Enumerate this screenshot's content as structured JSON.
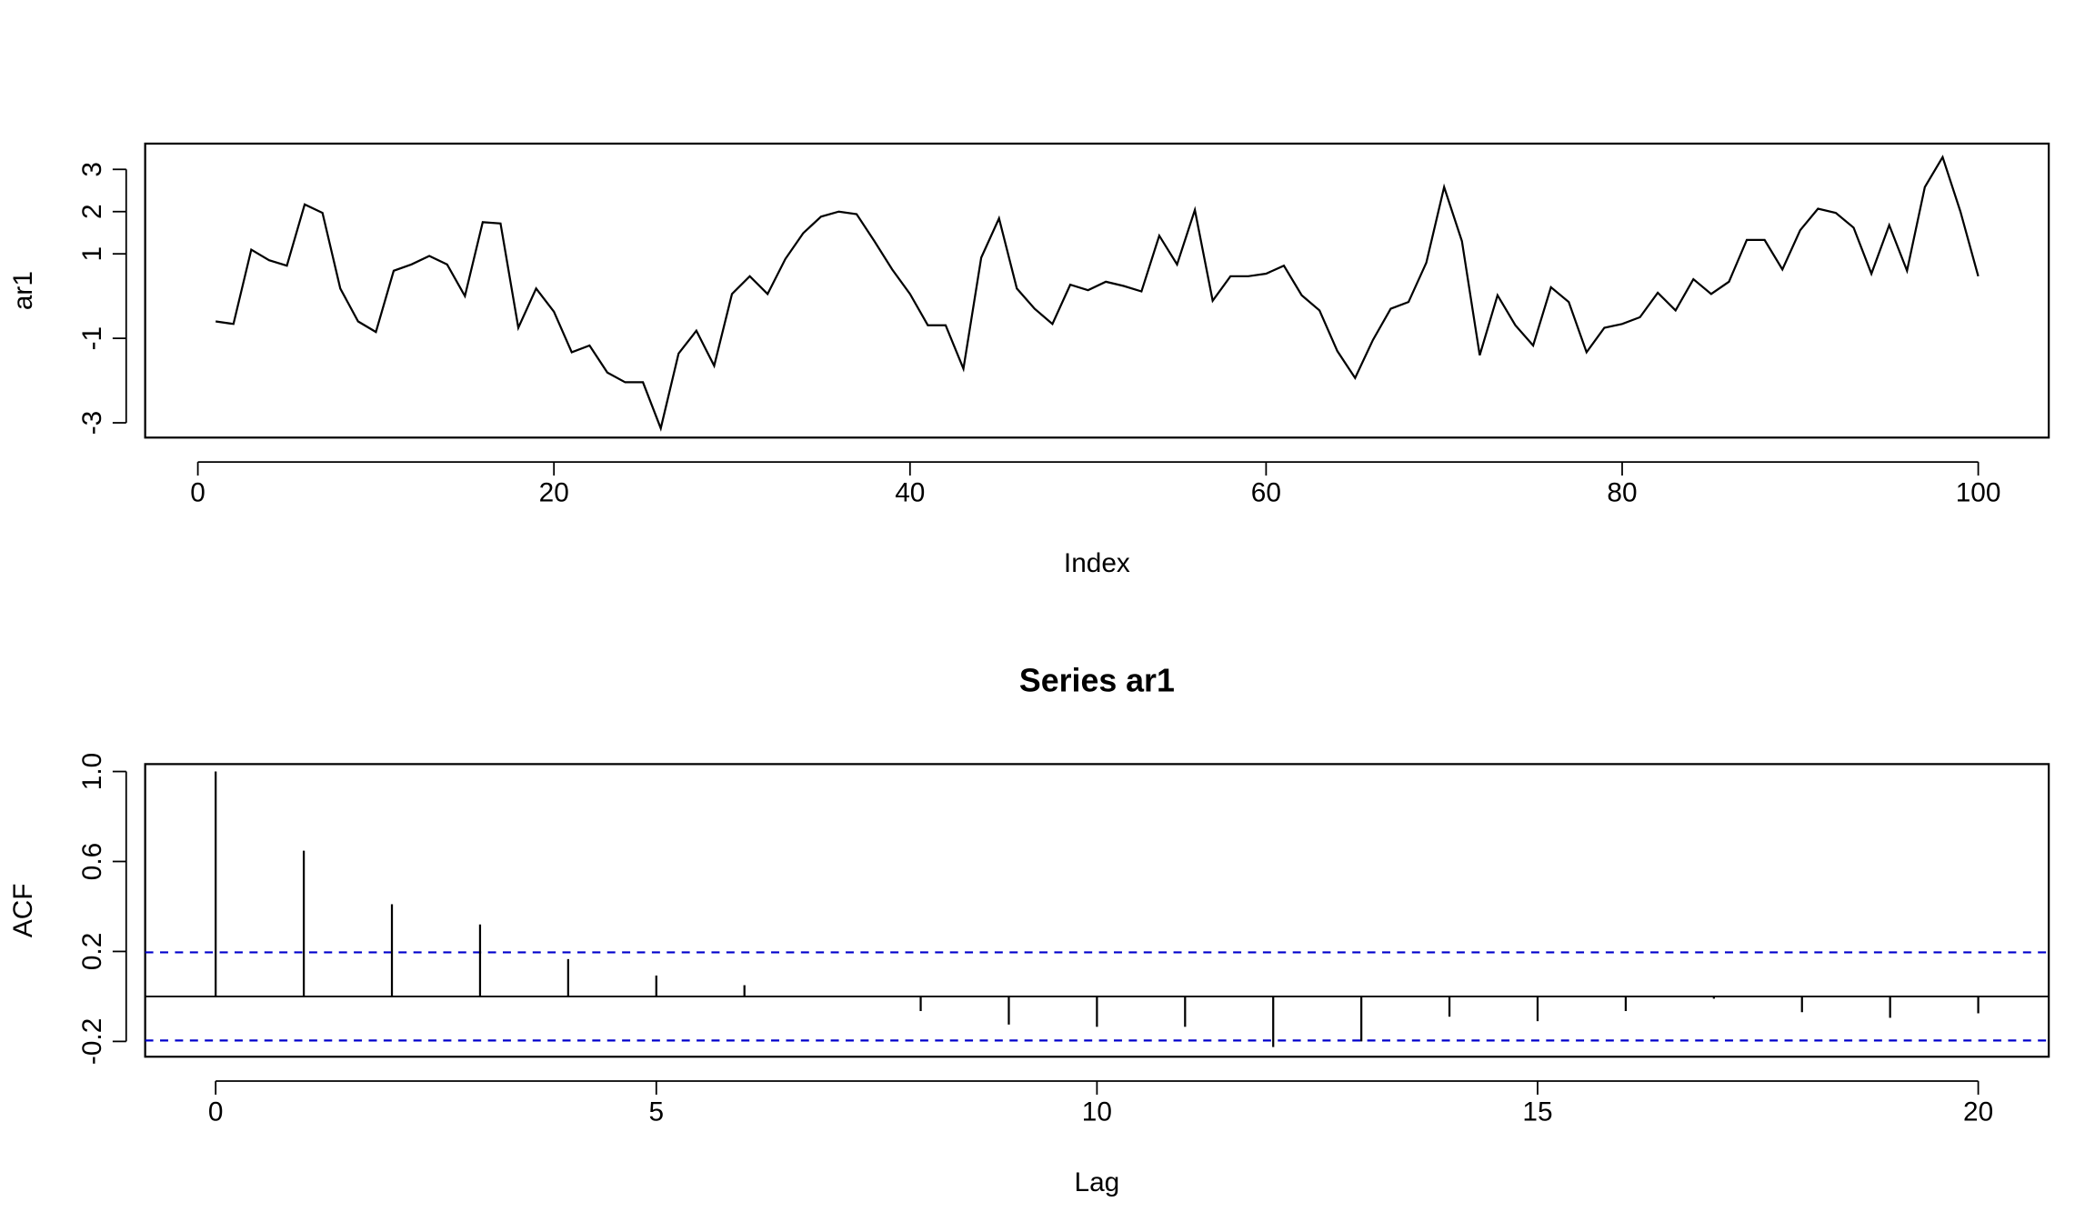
{
  "chart_data": [
    {
      "type": "line",
      "ylabel": "ar1",
      "xlabel": "Index",
      "color": "#000000",
      "x": [
        1,
        2,
        3,
        4,
        5,
        6,
        7,
        8,
        9,
        10,
        11,
        12,
        13,
        14,
        15,
        16,
        17,
        18,
        19,
        20,
        21,
        22,
        23,
        24,
        25,
        26,
        27,
        28,
        29,
        30,
        31,
        32,
        33,
        34,
        35,
        36,
        37,
        38,
        39,
        40,
        41,
        42,
        43,
        44,
        45,
        46,
        47,
        48,
        49,
        50,
        51,
        52,
        53,
        54,
        55,
        56,
        57,
        58,
        59,
        60,
        61,
        62,
        63,
        64,
        65,
        66,
        67,
        68,
        69,
        70,
        71,
        72,
        73,
        74,
        75,
        76,
        77,
        78,
        79,
        80,
        81,
        82,
        83,
        84,
        85,
        86,
        87,
        88,
        89,
        90,
        91,
        92,
        93,
        94,
        95,
        96,
        97,
        98,
        99,
        100
      ],
      "values": [
        -0.6,
        -0.66,
        1.1,
        0.85,
        0.72,
        2.17,
        1.97,
        0.18,
        -0.6,
        -0.85,
        0.6,
        0.75,
        0.95,
        0.75,
        0,
        1.75,
        1.72,
        -0.75,
        0.18,
        -0.37,
        -1.33,
        -1.17,
        -1.81,
        -2.04,
        -2.04,
        -3.13,
        -1.36,
        -0.82,
        -1.65,
        0.05,
        0.47,
        0.05,
        0.88,
        1.49,
        1.88,
        2.0,
        1.94,
        1.3,
        0.63,
        0.05,
        -0.69,
        -0.69,
        -1.72,
        0.91,
        1.84,
        0.18,
        -0.3,
        -0.66,
        0.27,
        0.14,
        0.34,
        0.24,
        0.11,
        1.43,
        0.75,
        2.04,
        -0.11,
        0.47,
        0.47,
        0.53,
        0.72,
        0.02,
        -0.34,
        -1.3,
        -1.94,
        -1.04,
        -0.3,
        -0.14,
        0.79,
        2.58,
        1.3,
        -1.4,
        0.02,
        -0.69,
        -1.17,
        0.21,
        -0.14,
        -1.33,
        -0.75,
        -0.66,
        -0.5,
        0.08,
        -0.34,
        0.4,
        0.05,
        0.34,
        1.33,
        1.33,
        0.63,
        1.56,
        2.07,
        1.97,
        1.62,
        0.53,
        1.68,
        0.6,
        2.58,
        3.29,
        2.0,
        0.47
      ],
      "xlim": [
        -2.96,
        103.96
      ],
      "ylim": [
        -3.35,
        3.61
      ],
      "xticks": [
        0,
        20,
        40,
        60,
        80,
        100
      ],
      "yticks": [
        -3,
        -1,
        1,
        2,
        3
      ]
    },
    {
      "type": "stem",
      "title": "Series  ar1",
      "ylabel": "ACF",
      "xlabel": "Lag",
      "color": "#000000",
      "x": [
        0,
        1,
        2,
        3,
        4,
        5,
        6,
        7,
        8,
        9,
        10,
        11,
        12,
        13,
        14,
        15,
        16,
        17,
        18,
        19,
        20
      ],
      "values": [
        1.0,
        0.648,
        0.41,
        0.32,
        0.166,
        0.093,
        0.05,
        0.0,
        -0.065,
        -0.125,
        -0.135,
        -0.135,
        -0.225,
        -0.2,
        -0.09,
        -0.11,
        -0.065,
        -0.01,
        -0.07,
        -0.095,
        -0.075
      ],
      "ci": 0.196,
      "ci_color": "#0000cc",
      "xlim": [
        -0.8,
        20.8
      ],
      "ylim": [
        -0.268,
        1.033
      ],
      "xticks": [
        0,
        5,
        10,
        15,
        20
      ],
      "yticks": [
        -0.2,
        0.2,
        0.6,
        {
          "value": 1,
          "label": "1.0"
        }
      ]
    }
  ]
}
